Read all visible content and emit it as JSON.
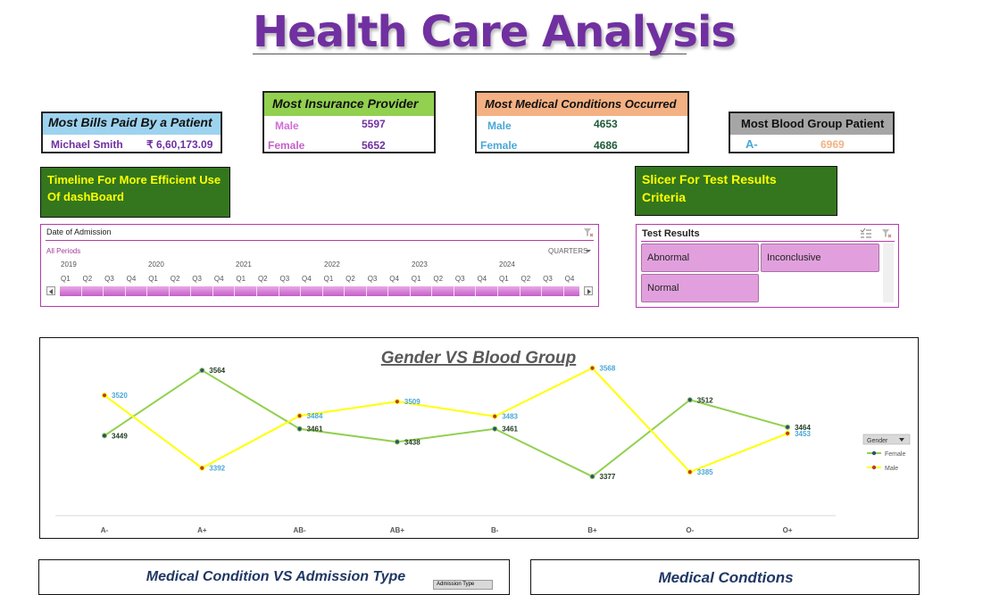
{
  "title": "Health Care Analysis",
  "bills_card": {
    "header": "Most Bills Paid By a Patient",
    "name": "Michael Smith",
    "amount": "₹ 6,60,173.09"
  },
  "insurance_card": {
    "header": "Most Insurance Provider",
    "rows": [
      {
        "label": "Male",
        "value": "5597"
      },
      {
        "label": "Female",
        "value": "5652"
      }
    ]
  },
  "conditions_card": {
    "header": "Most Medical Conditions Occurred",
    "rows": [
      {
        "label": "Male",
        "value": "4653"
      },
      {
        "label": "Female",
        "value": "4686"
      }
    ]
  },
  "blood_card": {
    "header": "Most Blood Group Patient",
    "group": "A-",
    "value": "6969"
  },
  "timeline_note": {
    "line1": "Timeline For More Efficient Use",
    "line2": "Of dashBoard"
  },
  "slicer_note": {
    "line1": "Slicer  For Test Results",
    "line2": "Criteria"
  },
  "timeline": {
    "header": "Date of Admission",
    "periods": "All Periods",
    "level": "QUARTERS",
    "years": [
      "2019",
      "2020",
      "2021",
      "2022",
      "2023",
      "2024"
    ],
    "quarters": [
      "Q1",
      "Q2",
      "Q3",
      "Q4",
      "Q1",
      "Q2",
      "Q3",
      "Q4",
      "Q1",
      "Q2",
      "Q3",
      "Q4",
      "Q1",
      "Q2",
      "Q3",
      "Q4",
      "Q1",
      "Q2",
      "Q3",
      "Q4",
      "Q1",
      "Q2",
      "Q3",
      "Q4"
    ],
    "icons": {
      "clear": "clear-filter-icon",
      "left": "scroll-left-icon",
      "right": "scroll-right-icon"
    }
  },
  "test_slicer": {
    "header": "Test Results",
    "items": [
      "Abnormal",
      "Inconclusive",
      "Normal"
    ],
    "icons": {
      "multi": "multi-select-icon",
      "clear": "clear-filter-icon"
    }
  },
  "chart_data": {
    "type": "line",
    "title": "Gender VS Blood Group",
    "categories": [
      "A-",
      "A+",
      "AB-",
      "AB+",
      "B-",
      "B+",
      "O-",
      "O+"
    ],
    "series": [
      {
        "name": "Female",
        "values": [
          3449,
          3564,
          3461,
          3438,
          3461,
          3377,
          3512,
          3464
        ],
        "color": "#92d050"
      },
      {
        "name": "Male",
        "values": [
          3520,
          3392,
          3484,
          3509,
          3483,
          3568,
          3385,
          3453
        ],
        "color": "#ffff00"
      }
    ],
    "legend_title": "Gender",
    "legend_position": "right",
    "ylim": [
      3360,
      3580
    ],
    "grid": false
  },
  "bottom_left": {
    "title": "Medical Condition VS Admission Type",
    "filter": "Admission Type"
  },
  "bottom_right": {
    "title": "Medical Condtions"
  },
  "colors": {
    "purple": "#7030a0",
    "male_pink": "#d36cd8",
    "female_pink": "#c45fc8",
    "teal_value": "#1f5c3a",
    "blue_label": "#4aa7d6",
    "salmon": "#f4b183",
    "green_header": "#92d050",
    "lightblue_header": "#9dd3ef",
    "gray_header": "#a6a6a6",
    "dark_green": "#33761e"
  }
}
